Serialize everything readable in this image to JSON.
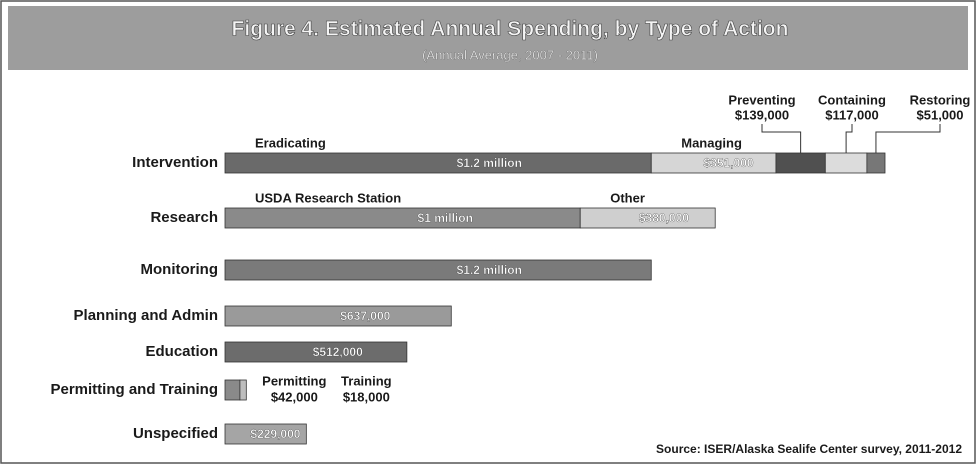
{
  "chart_data": {
    "type": "bar",
    "title": "Figure 4. Estimated Annual Spending, by Type of Action",
    "subtitle": "(Annual Average, 2007 - 2011)",
    "source": "Source: ISER/Alaska Sealife Center survey, 2011-2012",
    "rows": [
      {
        "category": "Intervention",
        "segments": [
          {
            "name": "Eradicating",
            "value": 1200000,
            "value_label": "$1.2 million",
            "color": "#6a6a6a"
          },
          {
            "name": "Managing",
            "value": 351000,
            "value_label": "$351,000",
            "color": "#d6d6d6"
          },
          {
            "name": "Preventing",
            "value": 139000,
            "value_label": "$139,000",
            "color": "#505050"
          },
          {
            "name": "Containing",
            "value": 117000,
            "value_label": "$117,000",
            "color": "#dcdcdc"
          },
          {
            "name": "Restoring",
            "value": 51000,
            "value_label": "$51,000",
            "color": "#777777"
          }
        ]
      },
      {
        "category": "Research",
        "segments": [
          {
            "name": "USDA Research Station",
            "value": 1000000,
            "value_label": "$1 million",
            "color": "#8a8a8a"
          },
          {
            "name": "Other",
            "value": 380000,
            "value_label": "$380,000",
            "color": "#cfcfcf"
          }
        ]
      },
      {
        "category": "Monitoring",
        "segments": [
          {
            "value": 1200000,
            "value_label": "$1.2 million",
            "color": "#7a7a7a"
          }
        ]
      },
      {
        "category": "Planning and Admin",
        "segments": [
          {
            "value": 637000,
            "value_label": "$637,000",
            "color": "#9a9a9a"
          }
        ]
      },
      {
        "category": "Education",
        "segments": [
          {
            "value": 512000,
            "value_label": "$512,000",
            "color": "#6c6c6c"
          }
        ]
      },
      {
        "category": "Permitting and Training",
        "segments": [
          {
            "name": "Permitting",
            "value": 42000,
            "value_label": "$42,000",
            "color": "#8a8a8a"
          },
          {
            "name": "Training",
            "value": 18000,
            "value_label": "$18,000",
            "color": "#bdbdbd"
          }
        ]
      },
      {
        "category": "Unspecified",
        "segments": [
          {
            "value": 229000,
            "value_label": "$229,000",
            "color": "#a5a5a5"
          }
        ]
      }
    ]
  }
}
